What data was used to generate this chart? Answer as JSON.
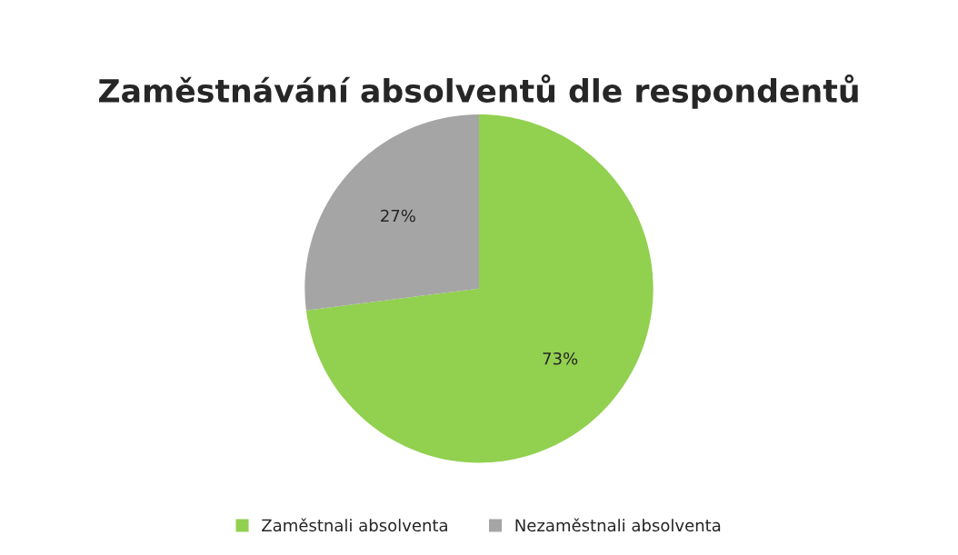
{
  "chart_data": {
    "type": "pie",
    "title": "Zaměstnávání absolventů dle respondentů",
    "categories": [
      "Zaměstnali absolventa",
      "Nezaměstnali absolventa"
    ],
    "values": [
      73,
      27
    ],
    "colors": [
      "#92d050",
      "#a5a5a5"
    ],
    "value_labels": [
      "73%",
      "27%"
    ],
    "legend": "bottom"
  }
}
